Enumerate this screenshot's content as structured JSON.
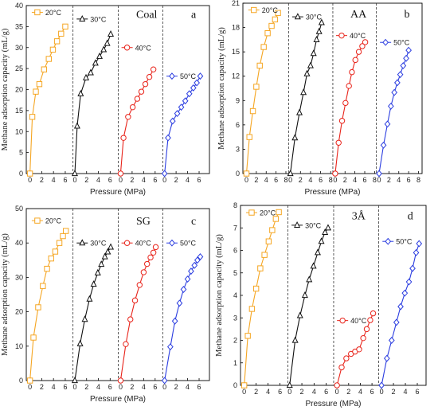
{
  "chart_data": [
    {
      "type": "line",
      "title": "Coal",
      "panel_label": "a",
      "xlabel": "Pressure (MPa)",
      "ylabel": "Methane adsorption capacity (mL/g)",
      "ylim": [
        0,
        40
      ],
      "yticks": [
        0,
        5,
        10,
        15,
        20,
        25,
        30,
        35,
        40
      ],
      "xlim": [
        0,
        7
      ],
      "xtick_labels": [
        "0",
        "2",
        "4",
        "6"
      ],
      "layout": "side-by-side sub-plots separated by dashed lines",
      "series": [
        {
          "name": "20°C",
          "color": "#f5a623",
          "marker": "square",
          "x": [
            0,
            0.4,
            1.0,
            1.6,
            2.4,
            3.2,
            3.9,
            4.6,
            5.3,
            6.0
          ],
          "y": [
            0,
            13.5,
            19.5,
            21.3,
            24.8,
            27.3,
            29.5,
            31.5,
            33.3,
            35.0
          ]
        },
        {
          "name": "30°C",
          "color": "#111111",
          "marker": "triangle",
          "x": [
            0,
            0.4,
            1.0,
            1.9,
            2.7,
            3.5,
            4.2,
            4.9,
            5.5,
            6.1
          ],
          "y": [
            0,
            11.3,
            19.0,
            22.8,
            24.0,
            26.3,
            27.9,
            29.5,
            31.0,
            33.2
          ]
        },
        {
          "name": "40°C",
          "color": "#e8231a",
          "marker": "circle",
          "x": [
            0,
            0.5,
            1.3,
            2.1,
            2.9,
            3.6,
            4.3,
            5.0,
            5.7
          ],
          "y": [
            0,
            8.5,
            13.5,
            15.8,
            17.8,
            19.5,
            21.3,
            23.0,
            24.8
          ]
        },
        {
          "name": "50°C",
          "color": "#2b3de0",
          "marker": "diamond",
          "x": [
            0,
            0.6,
            1.4,
            2.2,
            2.9,
            3.6,
            4.3,
            5.0,
            5.6,
            6.2
          ],
          "y": [
            0,
            8.5,
            12.5,
            14.3,
            15.8,
            17.3,
            19.0,
            20.4,
            21.6,
            23.2
          ]
        }
      ]
    },
    {
      "type": "line",
      "title": "AA",
      "panel_label": "b",
      "xlabel": "Pressure (MPa)",
      "ylabel": "Methane adsorption capacity (mL/g)",
      "ylim": [
        0,
        21
      ],
      "yticks": [
        0,
        3,
        6,
        9,
        12,
        15,
        18,
        21
      ],
      "xlim": [
        0,
        8
      ],
      "xtick_labels": [
        "0",
        "2",
        "4",
        "6",
        "8"
      ],
      "layout": "side-by-side sub-plots separated by dashed lines",
      "series": [
        {
          "name": "20°C",
          "color": "#f5a623",
          "marker": "square",
          "x": [
            0,
            0.6,
            1.3,
            2.0,
            2.7,
            3.5,
            4.3,
            5.1,
            5.8,
            6.4
          ],
          "y": [
            0,
            4.5,
            7.7,
            10.7,
            13.3,
            15.6,
            17.3,
            18.2,
            19.0,
            19.8
          ]
        },
        {
          "name": "30°C",
          "color": "#111111",
          "marker": "triangle",
          "x": [
            0,
            0.9,
            1.8,
            2.6,
            3.3,
            4.0,
            4.6,
            5.2,
            5.7,
            6.2
          ],
          "y": [
            0,
            4.4,
            7.5,
            10.0,
            12.3,
            13.3,
            14.8,
            16.5,
            17.5,
            18.6
          ]
        },
        {
          "name": "40°C",
          "color": "#e8231a",
          "marker": "circle",
          "x": [
            0,
            0.7,
            1.4,
            2.1,
            2.8,
            3.4,
            4.1,
            4.8,
            5.5,
            6.1
          ],
          "y": [
            0,
            3.8,
            6.5,
            8.7,
            10.8,
            12.5,
            14.0,
            15.0,
            15.7,
            16.2
          ]
        },
        {
          "name": "50°C",
          "color": "#2b3de0",
          "marker": "diamond",
          "x": [
            0,
            0.9,
            1.7,
            2.4,
            3.1,
            3.7,
            4.3,
            4.9,
            5.5,
            6.0
          ],
          "y": [
            0,
            3.5,
            6.1,
            8.3,
            10.0,
            11.2,
            12.2,
            13.3,
            14.2,
            15.2
          ]
        }
      ]
    },
    {
      "type": "line",
      "title": "SG",
      "panel_label": "c",
      "xlabel": "Pressure (MPa)",
      "ylabel": "Methane adsorption capacity (mL/g)",
      "ylim": [
        0,
        50
      ],
      "yticks": [
        0,
        10,
        20,
        30,
        40,
        50
      ],
      "xlim": [
        0,
        7
      ],
      "xtick_labels": [
        "0",
        "2",
        "4",
        "6"
      ],
      "layout": "side-by-side sub-plots separated by dashed lines",
      "series": [
        {
          "name": "20°C",
          "color": "#f5a623",
          "marker": "square",
          "x": [
            0,
            0.6,
            1.4,
            2.2,
            2.9,
            3.6,
            4.3,
            5.0,
            5.6,
            6.1
          ],
          "y": [
            0,
            12.5,
            21.3,
            27.5,
            32.5,
            35.5,
            37.5,
            40.0,
            42.0,
            43.5
          ]
        },
        {
          "name": "30°C",
          "color": "#111111",
          "marker": "triangle",
          "x": [
            0,
            0.9,
            1.7,
            2.5,
            3.2,
            3.9,
            4.5,
            5.1,
            5.6,
            6.1
          ],
          "y": [
            0,
            10.7,
            17.8,
            23.7,
            28.0,
            31.3,
            33.8,
            36.0,
            37.4,
            38.8
          ]
        },
        {
          "name": "40°C",
          "color": "#e8231a",
          "marker": "circle",
          "x": [
            0,
            0.9,
            1.7,
            2.5,
            3.3,
            4.0,
            4.6,
            5.2,
            5.7,
            6.1
          ],
          "y": [
            0,
            10.6,
            17.8,
            23.3,
            27.8,
            31.5,
            33.9,
            35.8,
            37.2,
            38.8
          ]
        },
        {
          "name": "50°C",
          "color": "#2b3de0",
          "marker": "diamond",
          "x": [
            0,
            1.0,
            1.8,
            2.6,
            3.3,
            4.0,
            4.6,
            5.2,
            5.7,
            6.2
          ],
          "y": [
            0,
            9.8,
            17.3,
            22.5,
            26.5,
            29.5,
            31.8,
            33.5,
            35.0,
            36.0
          ]
        }
      ]
    },
    {
      "type": "line",
      "title": "3Å",
      "panel_label": "d",
      "xlabel": "Pressure (MPa)",
      "ylabel": "Methane adsorption capacity (mL/g)",
      "ylim": [
        0,
        8
      ],
      "yticks": [
        0,
        1,
        2,
        3,
        4,
        5,
        6,
        7,
        8
      ],
      "xlim": [
        0,
        7
      ],
      "xtick_labels": [
        "0",
        "2",
        "4",
        "6"
      ],
      "layout": "side-by-side sub-plots separated by dashed lines",
      "series": [
        {
          "name": "20°C",
          "color": "#f5a623",
          "marker": "square",
          "x": [
            0,
            0.6,
            1.3,
            2.0,
            2.7,
            3.4,
            4.1,
            4.7,
            5.3,
            5.8
          ],
          "y": [
            0,
            2.2,
            3.4,
            4.3,
            5.2,
            5.8,
            6.4,
            6.9,
            7.4,
            7.7
          ]
        },
        {
          "name": "30°C",
          "color": "#111111",
          "marker": "triangle",
          "x": [
            0,
            0.9,
            1.7,
            2.5,
            3.2,
            3.9,
            4.6,
            5.2,
            5.8,
            6.3
          ],
          "y": [
            0,
            2.0,
            3.1,
            4.0,
            4.7,
            5.3,
            5.9,
            6.4,
            6.8,
            7.0
          ]
        },
        {
          "name": "40°C",
          "color": "#e8231a",
          "marker": "circle",
          "x": [
            0,
            0.8,
            1.6,
            2.4,
            3.1,
            3.8,
            4.5,
            5.1,
            5.7,
            6.2
          ],
          "y": [
            0,
            0.8,
            1.2,
            1.4,
            1.5,
            1.6,
            2.1,
            2.5,
            2.9,
            3.2
          ]
        },
        {
          "name": "50°C",
          "color": "#2b3de0",
          "marker": "diamond",
          "x": [
            0,
            0.9,
            1.7,
            2.5,
            3.2,
            3.9,
            4.6,
            5.2,
            5.8,
            6.3
          ],
          "y": [
            0,
            1.2,
            2.0,
            2.8,
            3.5,
            4.1,
            4.6,
            5.2,
            5.9,
            6.3
          ]
        }
      ]
    }
  ]
}
